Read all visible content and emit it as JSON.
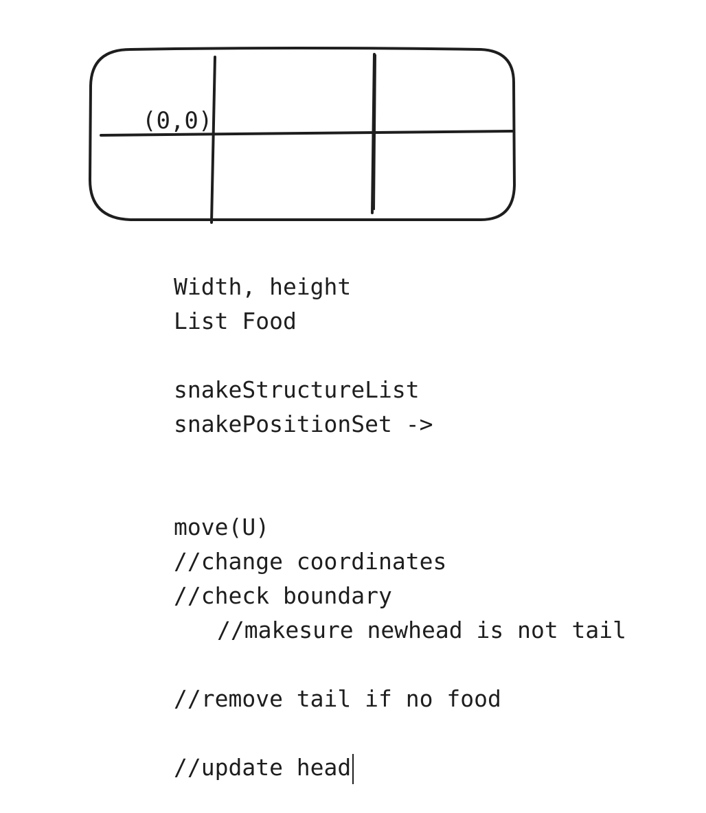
{
  "grid_label": "(0,0)",
  "notes": [
    "Width, height",
    "List Food",
    "snakeStructureList",
    "snakePositionSet ->",
    "move(U)",
    "//change coordinates",
    "//check boundary",
    "//makesure newhead is not tail",
    "//remove tail if no food",
    "//update head"
  ]
}
